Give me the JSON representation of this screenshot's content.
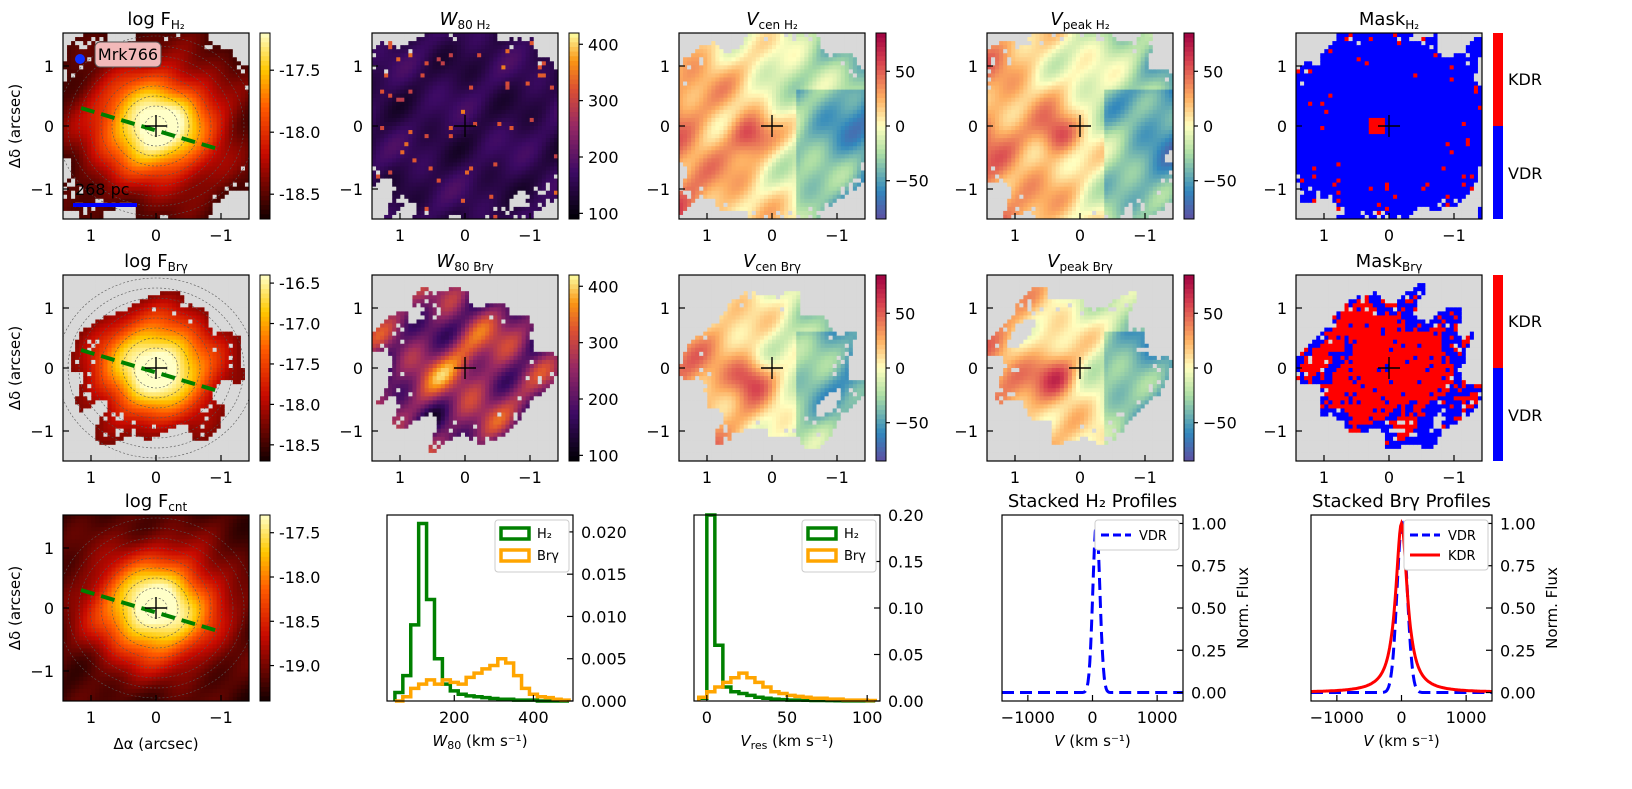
{
  "chart_data": [
    {
      "id": "p00",
      "type": "heatmap",
      "title": "log F",
      "title_sub": "H₂",
      "cmap": "hot",
      "xlabel": "",
      "ylabel": "Δδ (arcsec)",
      "xticks": [
        "1",
        "0",
        "−1"
      ],
      "yticks": [
        "1",
        "0",
        "−1"
      ],
      "xlim": [
        1.5,
        -1.5
      ],
      "ylim": [
        -1.5,
        1.5
      ],
      "colorbar": {
        "ticks": [
          "-17.5",
          "-18.0",
          "-18.5"
        ],
        "range": [
          -18.7,
          -17.2
        ]
      },
      "annotations": {
        "label": "Mrk766",
        "scalebar": "268 pc"
      },
      "pa_line": true
    },
    {
      "id": "p01",
      "type": "heatmap",
      "title": "W",
      "title_sub": "80 H₂",
      "italic": true,
      "cmap": "inferno",
      "xticks": [
        "1",
        "0",
        "−1"
      ],
      "yticks": [
        "1",
        "0",
        "−1"
      ],
      "colorbar": {
        "ticks": [
          "400",
          "300",
          "200",
          "100"
        ],
        "range": [
          90,
          420
        ]
      }
    },
    {
      "id": "p02",
      "type": "heatmap",
      "title": "V",
      "title_sub": "cen H₂",
      "italic": true,
      "cmap": "spectral",
      "xticks": [
        "1",
        "0",
        "−1"
      ],
      "yticks": [
        "1",
        "0",
        "−1"
      ],
      "colorbar": {
        "ticks": [
          "50",
          "0",
          "−50"
        ],
        "range": [
          -85,
          85
        ]
      }
    },
    {
      "id": "p03",
      "type": "heatmap",
      "title": "V",
      "title_sub": "peak H₂",
      "italic": true,
      "cmap": "spectral",
      "xticks": [
        "1",
        "0",
        "−1"
      ],
      "yticks": [
        "1",
        "0",
        "−1"
      ],
      "colorbar": {
        "ticks": [
          "50",
          "0",
          "−50"
        ],
        "range": [
          -85,
          85
        ]
      }
    },
    {
      "id": "p04",
      "type": "heatmap",
      "title": "Mask",
      "title_sub": "H₂",
      "cmap": "mask",
      "kdr_frac": 0.04,
      "xticks": [
        "1",
        "0",
        "−1"
      ],
      "yticks": [
        "1",
        "0",
        "−1"
      ],
      "colorbar": {
        "ticks": [
          "KDR",
          "VDR"
        ]
      }
    },
    {
      "id": "p10",
      "type": "heatmap",
      "title": "log F",
      "title_sub": "Brγ",
      "cmap": "hot",
      "ylabel": "Δδ (arcsec)",
      "xticks": [
        "1",
        "0",
        "−1"
      ],
      "yticks": [
        "1",
        "0",
        "−1"
      ],
      "colorbar": {
        "ticks": [
          "-16.5",
          "-17.0",
          "-17.5",
          "-18.0",
          "-18.5"
        ],
        "range": [
          -18.7,
          -16.4
        ]
      },
      "pa_line": true
    },
    {
      "id": "p11",
      "type": "heatmap",
      "title": "W",
      "title_sub": "80 Brγ",
      "italic": true,
      "cmap": "inferno",
      "xticks": [
        "1",
        "0",
        "−1"
      ],
      "yticks": [
        "1",
        "0",
        "−1"
      ],
      "colorbar": {
        "ticks": [
          "400",
          "300",
          "200",
          "100"
        ],
        "range": [
          90,
          420
        ]
      }
    },
    {
      "id": "p12",
      "type": "heatmap",
      "title": "V",
      "title_sub": "cen Brγ",
      "italic": true,
      "cmap": "spectral",
      "xticks": [
        "1",
        "0",
        "−1"
      ],
      "yticks": [
        "1",
        "0",
        "−1"
      ],
      "colorbar": {
        "ticks": [
          "50",
          "0",
          "−50"
        ],
        "range": [
          -85,
          85
        ]
      }
    },
    {
      "id": "p13",
      "type": "heatmap",
      "title": "V",
      "title_sub": "peak Brγ",
      "italic": true,
      "cmap": "spectral",
      "xticks": [
        "1",
        "0",
        "−1"
      ],
      "yticks": [
        "1",
        "0",
        "−1"
      ],
      "colorbar": {
        "ticks": [
          "50",
          "0",
          "−50"
        ],
        "range": [
          -85,
          85
        ]
      }
    },
    {
      "id": "p14",
      "type": "heatmap",
      "title": "Mask",
      "title_sub": "Brγ",
      "cmap": "mask",
      "kdr_frac": 0.6,
      "xticks": [
        "1",
        "0",
        "−1"
      ],
      "yticks": [
        "1",
        "0",
        "−1"
      ],
      "colorbar": {
        "ticks": [
          "KDR",
          "VDR"
        ]
      }
    },
    {
      "id": "p20",
      "type": "heatmap",
      "title": "log F",
      "title_sub": "cnt",
      "cmap": "hot",
      "ylabel": "Δδ (arcsec)",
      "xlabel": "Δα (arcsec)",
      "xticks": [
        "1",
        "0",
        "−1"
      ],
      "yticks": [
        "1",
        "0",
        "−1"
      ],
      "colorbar": {
        "ticks": [
          "-17.5",
          "-18.0",
          "-18.5",
          "-19.0"
        ],
        "range": [
          -19.4,
          -17.3
        ]
      },
      "pa_line": true
    },
    {
      "id": "p21",
      "type": "histogram",
      "xlabel": "W",
      "xlabel_sub": "80",
      "xlabel_unit": " (km s⁻¹)",
      "xlim": [
        30,
        500
      ],
      "ylim": [
        0,
        0.022
      ],
      "xticks": [
        200,
        400
      ],
      "yticks": [
        "0.000",
        "0.005",
        "0.010",
        "0.015",
        "0.020"
      ],
      "ytick_vals": [
        0,
        0.005,
        0.01,
        0.015,
        0.02
      ],
      "bin_edges": [
        50,
        70,
        90,
        110,
        130,
        150,
        170,
        190,
        210,
        230,
        250,
        270,
        290,
        310,
        330,
        350,
        370,
        390,
        410,
        430,
        450,
        470,
        490
      ],
      "series": [
        {
          "name": "H₂",
          "color": "#008000",
          "values": [
            0.001,
            0.003,
            0.009,
            0.021,
            0.012,
            0.005,
            0.002,
            0.0012,
            0.0008,
            0.0006,
            0.0005,
            0.0004,
            0.0003,
            0.0002,
            0.0002,
            0.0001,
            0.0001,
            0.0001,
            0,
            0,
            0,
            0
          ]
        },
        {
          "name": "Brγ",
          "color": "#ffa500",
          "values": [
            0.0,
            0.0005,
            0.0015,
            0.002,
            0.0025,
            0.002,
            0.0025,
            0.0022,
            0.002,
            0.0028,
            0.0033,
            0.0038,
            0.0042,
            0.005,
            0.0045,
            0.003,
            0.0015,
            0.0008,
            0.0005,
            0.0004,
            0.0002,
            0.0001
          ]
        }
      ]
    },
    {
      "id": "p22",
      "type": "histogram",
      "xlabel": "V",
      "xlabel_sub": "res",
      "xlabel_unit": " (km s⁻¹)",
      "xlim": [
        -8,
        108
      ],
      "ylim": [
        0,
        0.2
      ],
      "xticks": [
        0,
        50,
        100
      ],
      "yticks": [
        "0.00",
        "0.05",
        "0.10",
        "0.15",
        "0.20"
      ],
      "ytick_vals": [
        0,
        0.05,
        0.1,
        0.15,
        0.2
      ],
      "bin_edges": [
        -5,
        0,
        5,
        10,
        15,
        20,
        25,
        30,
        35,
        40,
        45,
        50,
        55,
        60,
        65,
        70,
        75,
        80,
        85,
        90,
        95,
        100,
        105
      ],
      "series": [
        {
          "name": "H₂",
          "color": "#008000",
          "values": [
            0.003,
            0.2,
            0.06,
            0.015,
            0.01,
            0.008,
            0.006,
            0.004,
            0.003,
            0.002,
            0.0015,
            0.001,
            0.001,
            0.0008,
            0.0006,
            0.0005,
            0.0004,
            0.0003,
            0.0002,
            0.0002,
            0.0001,
            0.0001
          ]
        },
        {
          "name": "Brγ",
          "color": "#ffa500",
          "values": [
            0.004,
            0.01,
            0.015,
            0.02,
            0.025,
            0.03,
            0.025,
            0.02,
            0.015,
            0.01,
            0.008,
            0.006,
            0.005,
            0.004,
            0.003,
            0.003,
            0.002,
            0.002,
            0.001,
            0.001,
            0.001,
            0.0005
          ]
        }
      ]
    },
    {
      "id": "p23",
      "type": "line",
      "title": "Stacked H₂ Profiles",
      "xlabel": "V",
      "xlabel_unit": " (km s⁻¹)",
      "ylabel": "Norm. Flux",
      "xlim": [
        -1400,
        1400
      ],
      "ylim": [
        -0.05,
        1.05
      ],
      "xticks": [
        -1000,
        0,
        1000
      ],
      "xtick_labels": [
        "−1000",
        "0",
        "1000"
      ],
      "yticks": [
        "0.00",
        "0.25",
        "0.50",
        "0.75",
        "1.00"
      ],
      "ytick_vals": [
        0,
        0.25,
        0.5,
        0.75,
        1.0
      ],
      "series": [
        {
          "name": "VDR",
          "color": "#0000ff",
          "dash": true,
          "center": 60,
          "sigma": 55
        }
      ]
    },
    {
      "id": "p24",
      "type": "line",
      "title": "Stacked Brγ Profiles",
      "xlabel": "V",
      "xlabel_unit": " (km s⁻¹)",
      "ylabel": "Norm. Flux",
      "xlim": [
        -1400,
        1400
      ],
      "ylim": [
        -0.05,
        1.05
      ],
      "xticks": [
        -1000,
        0,
        1000
      ],
      "xtick_labels": [
        "−1000",
        "0",
        "1000"
      ],
      "yticks": [
        "0.00",
        "0.25",
        "0.50",
        "0.75",
        "1.00"
      ],
      "ytick_vals": [
        0,
        0.25,
        0.5,
        0.75,
        1.0
      ],
      "series": [
        {
          "name": "VDR",
          "color": "#0000ff",
          "dash": true,
          "center": 10,
          "sigma": 80
        },
        {
          "name": "KDR",
          "color": "#ff0000",
          "dash": false,
          "center": 0,
          "sigma": 110,
          "lorentz": true
        }
      ]
    }
  ]
}
